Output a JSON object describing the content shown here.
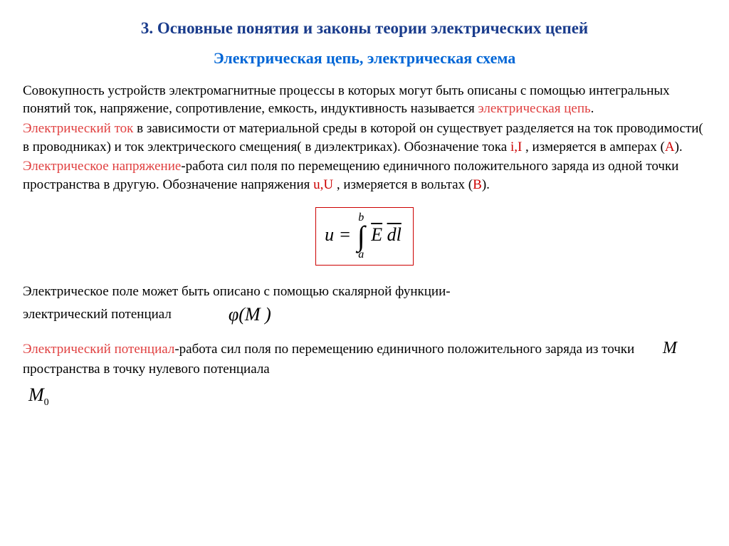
{
  "colors": {
    "title_dark_blue": "#1a3c8c",
    "title_bright_blue": "#0066d6",
    "accent_red": "#cc0000",
    "accent_red_light": "#e04040",
    "body_text": "#000000",
    "background": "#ffffff",
    "formula_border": "#cc0000"
  },
  "typography": {
    "family": "Times New Roman",
    "title1_size_pt": 17,
    "title2_size_pt": 16,
    "body_size_pt": 14,
    "formula_size_pt": 20
  },
  "title1": "3. Основные понятия и законы теории электрических цепей",
  "title2": "Электрическая цепь, электрическая схема",
  "p1": {
    "text_a": "Совокупность устройств электромагнитные процессы в которых могут быть описаны с помощью интегральных понятий ток, напряжение, сопротивление, емкость, индуктивность называется ",
    "term": "электрическая цепь",
    "text_b": "."
  },
  "p2": {
    "term": "Электрический ток",
    "text_a": "   в зависимости от материальной среды в которой он существует разделяется на ток проводимости( в проводниках) и ток электрического смещения( в диэлектриках). Обозначение  тока   ",
    "sym": "i,I",
    "text_b": "    ,   измеряется в амперах   (",
    "unit": "A",
    "text_c": ")."
  },
  "p3": {
    "term": " Электрическое напряжение",
    "text_a": "-работа сил поля по перемещению единичного положительного заряда из одной точки пространства в другую. Обозначение напряжения   ",
    "sym": "u,U",
    "text_b": "     ,   измеряется в вольтах   (",
    "unit": "B",
    "text_c": ")."
  },
  "formula": {
    "lhs": "u =",
    "lower": "a",
    "upper": "b",
    "e": "E",
    "dl": "dl"
  },
  "p4": {
    "text": "Электрическое поле может быть описано с помощью скалярной функции-",
    "text2": "электрический потенциал",
    "phi": "φ(M )"
  },
  "p5": {
    "term": "Электрический потенциал",
    "text_a": "-работа сил поля по перемещению единичного положительного заряда из точки",
    "M": "M",
    "text_b": "пространства в точку нулевого потенциала"
  },
  "M0": {
    "M": "M",
    "zero": "0"
  }
}
